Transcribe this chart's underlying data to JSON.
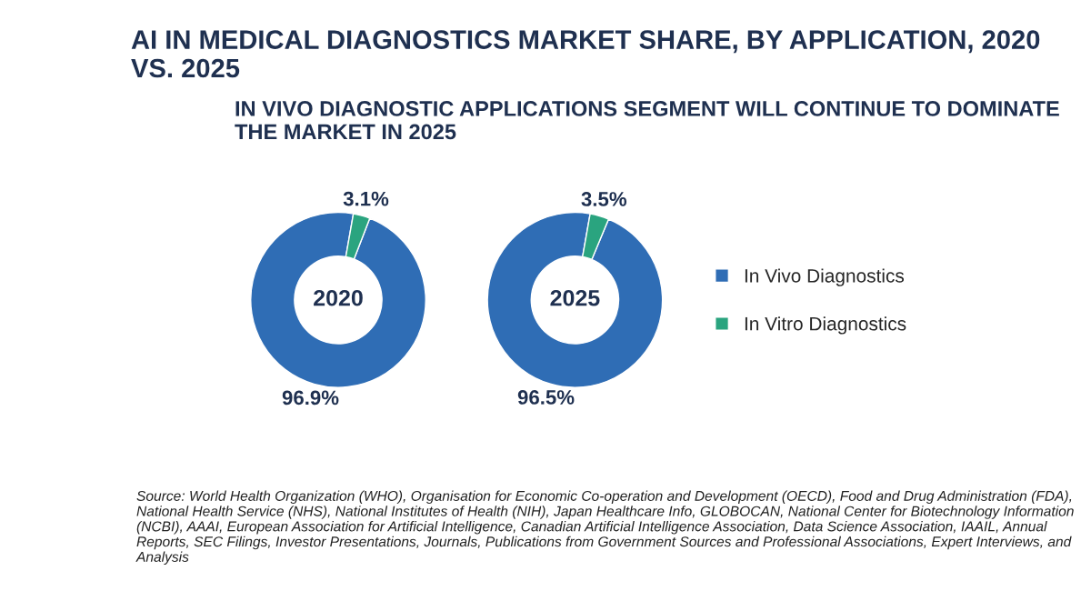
{
  "chart_data": [
    {
      "type": "donut",
      "title": "AI IN MEDICAL DIAGNOSTICS MARKET SHARE, BY APPLICATION, 2020 VS. 2025",
      "subtitle": "IN VIVO DIAGNOSTIC APPLICATIONS SEGMENT WILL CONTINUE TO DOMINATE THE MARKET IN 2025",
      "categories": [
        "In Vivo Diagnostics",
        "In Vitro Diagnostics"
      ],
      "values": [
        96.9,
        3.1
      ],
      "colors": [
        "#2f6db5",
        "#2aa47f"
      ],
      "value_labels": [
        "96.9%",
        "3.1%"
      ],
      "annotations": [
        "2020",
        "Source: World Health Organization (WHO), Organisation for Economic Co-operation and Development (OECD), Food and Drug Administration (FDA), National Health Service (NHS), National Institutes of Health (NIH), Japan Healthcare Info, GLOBOCAN, National Center for Biotechnology Information (NCBI), AAAI, European Association for Artificial Intelligence, Canadian Artificial Intelligence Association, Data Science Association, IAAIL, Annual Reports, SEC Filings, Investor Presentations, Journals, Publications from Government Sources and Professional Associations, Expert Interviews, and Analysis"
      ],
      "legend": "right"
    },
    {
      "type": "donut",
      "categories": [
        null,
        null
      ],
      "values": [
        96.5,
        3.5
      ],
      "colors": [
        "#2f6db5",
        "#2aa47f"
      ],
      "value_labels": [
        "96.5%",
        "3.5%"
      ],
      "annotations": [
        "2025"
      ]
    }
  ]
}
